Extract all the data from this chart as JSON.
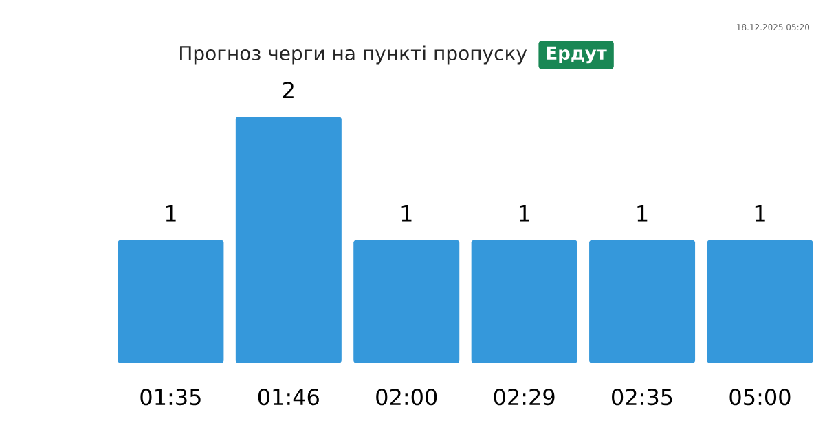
{
  "chart_data": {
    "type": "bar",
    "title": "Прогноз черги на пункті пропуску",
    "subtitle": "Ердут",
    "annotations": [
      "18.12.2025 05:20"
    ],
    "categories": [
      "01:35",
      "01:46",
      "02:00",
      "02:29",
      "02:35",
      "05:00"
    ],
    "values": [
      1,
      2,
      1,
      1,
      1,
      1
    ],
    "color": "#3598db",
    "data_labels": true
  }
}
